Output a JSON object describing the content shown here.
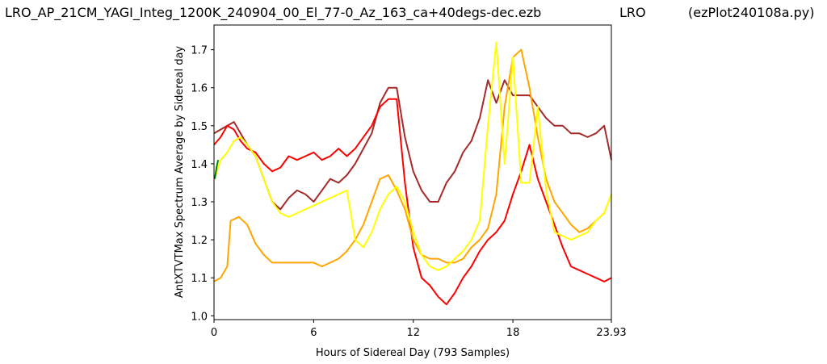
{
  "header": {
    "title": "LRO_AP_21CM_YAGI_Integ_1200K_240904_00_El_77-0_Az_163_ca+40degs-dec.ezb",
    "center_label": "LRO",
    "right_label": "(ezPlot240108a.py)"
  },
  "chart_data": {
    "type": "line",
    "xlabel": "Hours of Sidereal Day  (793 Samples)",
    "ylabel": "AntXTVTMax Spectrum Average by Sidereal day",
    "xlim": [
      0,
      23.93
    ],
    "ylim": [
      0.99,
      1.765
    ],
    "xticks": [
      0,
      6,
      12,
      18,
      23.93
    ],
    "xtick_labels": [
      "0",
      "6",
      "12",
      "18",
      "23.93"
    ],
    "yticks": [
      1.0,
      1.1,
      1.2,
      1.3,
      1.4,
      1.5,
      1.6,
      1.7
    ],
    "ytick_labels": [
      "1.0",
      "1.1",
      "1.2",
      "1.3",
      "1.4",
      "1.5",
      "1.6",
      "1.7"
    ],
    "grid": false,
    "series": [
      {
        "color": "#a52a2a",
        "x": [
          0,
          0.4,
          0.8,
          1.2,
          1.6,
          2.0,
          2.5,
          3.0,
          3.5,
          4.0,
          4.5,
          5.0,
          5.5,
          6.0,
          6.5,
          7.0,
          7.5,
          8.0,
          8.5,
          9.0,
          9.5,
          10.0,
          10.5,
          11.0,
          11.5,
          12.0,
          12.5,
          13.0,
          13.5,
          14.0,
          14.5,
          15.0,
          15.5,
          16.0,
          16.5,
          17.0,
          17.5,
          18.0,
          18.5,
          19.0,
          19.5,
          20.0,
          20.5,
          21.0,
          21.5,
          22.0,
          22.5,
          23.0,
          23.5,
          23.93
        ],
        "values": [
          1.48,
          1.49,
          1.5,
          1.51,
          1.48,
          1.45,
          1.42,
          1.36,
          1.3,
          1.28,
          1.31,
          1.33,
          1.32,
          1.3,
          1.33,
          1.36,
          1.35,
          1.37,
          1.4,
          1.44,
          1.48,
          1.56,
          1.6,
          1.6,
          1.47,
          1.38,
          1.33,
          1.3,
          1.3,
          1.35,
          1.38,
          1.43,
          1.46,
          1.52,
          1.62,
          1.56,
          1.62,
          1.58,
          1.58,
          1.58,
          1.55,
          1.52,
          1.5,
          1.5,
          1.48,
          1.48,
          1.47,
          1.48,
          1.5,
          1.41
        ]
      },
      {
        "color": "#ff0000",
        "x": [
          0,
          0.4,
          0.8,
          1.2,
          1.6,
          2.0,
          2.5,
          3.0,
          3.5,
          4.0,
          4.5,
          5.0,
          5.5,
          6.0,
          6.5,
          7.0,
          7.5,
          8.0,
          8.5,
          9.0,
          9.5,
          10.0,
          10.5,
          11.0,
          11.5,
          12.0,
          12.5,
          13.0,
          13.5,
          14.0,
          14.5,
          15.0,
          15.5,
          16.0,
          16.5,
          17.0,
          17.5,
          18.0,
          18.5,
          19.0,
          19.5,
          20.0,
          20.5,
          21.0,
          21.5,
          22.0,
          22.5,
          23.0,
          23.5,
          23.93
        ],
        "values": [
          1.45,
          1.47,
          1.5,
          1.49,
          1.46,
          1.44,
          1.43,
          1.4,
          1.38,
          1.39,
          1.42,
          1.41,
          1.42,
          1.43,
          1.41,
          1.42,
          1.44,
          1.42,
          1.44,
          1.47,
          1.5,
          1.55,
          1.57,
          1.57,
          1.35,
          1.18,
          1.1,
          1.08,
          1.05,
          1.03,
          1.06,
          1.1,
          1.13,
          1.17,
          1.2,
          1.22,
          1.25,
          1.32,
          1.38,
          1.45,
          1.36,
          1.3,
          1.24,
          1.18,
          1.13,
          1.12,
          1.11,
          1.1,
          1.09,
          1.1
        ]
      },
      {
        "color": "#ffa500",
        "x": [
          0,
          0.4,
          0.8,
          1.0,
          1.5,
          2.0,
          2.5,
          3.0,
          3.5,
          4.0,
          4.5,
          5.0,
          5.5,
          6.0,
          6.5,
          7.0,
          7.5,
          8.0,
          8.5,
          9.0,
          9.5,
          10.0,
          10.5,
          11.0,
          11.5,
          12.0,
          12.5,
          13.0,
          13.5,
          14.0,
          14.5,
          15.0,
          15.5,
          16.0,
          16.5,
          17.0,
          17.5,
          18.0,
          18.5,
          19.0,
          19.5,
          20.0,
          20.5,
          21.0,
          21.5,
          22.0,
          22.5,
          23.0,
          23.5,
          23.93
        ],
        "values": [
          1.09,
          1.1,
          1.13,
          1.25,
          1.26,
          1.24,
          1.19,
          1.16,
          1.14,
          1.14,
          1.14,
          1.14,
          1.14,
          1.14,
          1.13,
          1.14,
          1.15,
          1.17,
          1.2,
          1.24,
          1.3,
          1.36,
          1.37,
          1.33,
          1.28,
          1.2,
          1.16,
          1.15,
          1.15,
          1.14,
          1.14,
          1.15,
          1.18,
          1.2,
          1.23,
          1.32,
          1.55,
          1.68,
          1.7,
          1.6,
          1.47,
          1.36,
          1.3,
          1.27,
          1.24,
          1.22,
          1.23,
          1.25,
          1.27,
          1.32
        ]
      },
      {
        "color": "#ffff00",
        "x": [
          0.1,
          0.4,
          0.8,
          1.2,
          1.6,
          2.0,
          2.5,
          3.0,
          3.5,
          4.0,
          4.5,
          5.0,
          5.5,
          6.0,
          6.5,
          7.0,
          7.5,
          8.0,
          8.5,
          9.0,
          9.5,
          10.0,
          10.5,
          11.0,
          11.5,
          12.0,
          12.5,
          13.0,
          13.5,
          14.0,
          14.5,
          15.0,
          15.5,
          16.0,
          16.5,
          17.0,
          17.5,
          18.0,
          18.5,
          19.0,
          19.5,
          20.0,
          20.5,
          21.0,
          21.5,
          22.0,
          22.5,
          23.0,
          23.5,
          23.93
        ],
        "values": [
          1.37,
          1.41,
          1.43,
          1.46,
          1.47,
          1.45,
          1.42,
          1.36,
          1.3,
          1.27,
          1.26,
          1.27,
          1.28,
          1.29,
          1.3,
          1.31,
          1.32,
          1.33,
          1.2,
          1.18,
          1.22,
          1.28,
          1.32,
          1.34,
          1.3,
          1.22,
          1.16,
          1.13,
          1.12,
          1.13,
          1.15,
          1.17,
          1.2,
          1.25,
          1.5,
          1.72,
          1.4,
          1.68,
          1.35,
          1.35,
          1.55,
          1.33,
          1.22,
          1.21,
          1.2,
          1.21,
          1.22,
          1.25,
          1.27,
          1.32
        ]
      },
      {
        "color": "#008000",
        "x": [
          0.05,
          0.15,
          0.25
        ],
        "values": [
          1.36,
          1.39,
          1.41
        ]
      }
    ]
  }
}
